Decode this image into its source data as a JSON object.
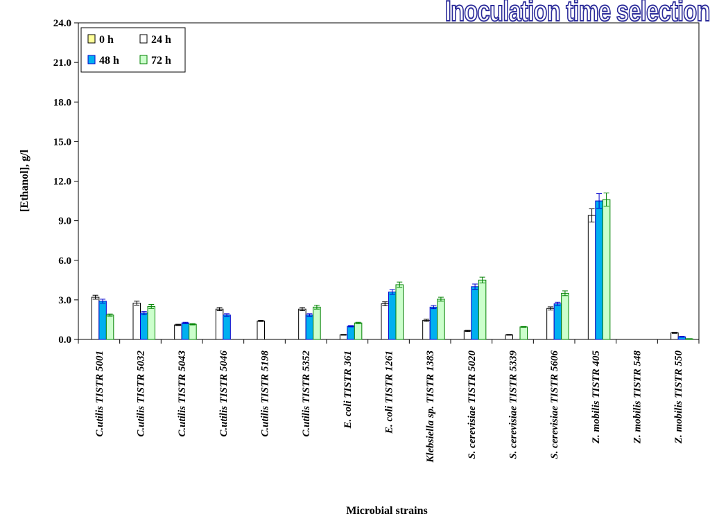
{
  "banner": "Inoculation time selection",
  "chart_data": {
    "type": "bar",
    "title": "",
    "xlabel": "Microbial strains",
    "ylabel": "[Ethanol], g/l",
    "ylim": [
      0,
      24
    ],
    "yticks": [
      "0.0",
      "3.0",
      "6.0",
      "9.0",
      "12.0",
      "15.0",
      "18.0",
      "21.0",
      "24.0"
    ],
    "grid": false,
    "legend_position": "top-left",
    "categories": [
      "C.utilis TISTR 5001",
      "C.utilis TISTR 5032",
      "C.utilis TISTR 5043",
      "C.utilis TISTR 5046",
      "C.utilis TISTR 5198",
      "C.utilis TISTR 5352",
      "E. coli TISTR 361",
      "E. coli TISTR 1261",
      "Klebsiella sp. TISTR 1383",
      "S. cerevisiae TISTR 5020",
      "S. cerevisiae TISTR 5339",
      "S. cerevisiae TISTR 5606",
      "Z. mobilis TISTR 405",
      "Z. mobilis TISTR 548",
      "Z. mobilis TISTR 550"
    ],
    "series": [
      {
        "name": "0 h",
        "color": "#ffff99",
        "stroke": "#000000",
        "values": [
          0,
          0,
          0,
          0,
          0,
          0,
          0,
          0,
          0,
          0,
          0,
          0,
          0,
          0,
          0
        ],
        "errors": [
          0,
          0,
          0,
          0,
          0,
          0,
          0,
          0,
          0,
          0,
          0,
          0,
          0,
          0,
          0
        ]
      },
      {
        "name": "24 h",
        "color": "#ffffff",
        "stroke": "#000000",
        "values": [
          3.2,
          2.75,
          1.1,
          2.3,
          1.4,
          2.3,
          0.35,
          2.7,
          1.45,
          0.65,
          0.35,
          2.35,
          9.4,
          0,
          0.5
        ],
        "errors": [
          0.15,
          0.15,
          0.05,
          0.12,
          0.04,
          0.12,
          0.03,
          0.15,
          0.08,
          0.05,
          0.03,
          0.12,
          0.5,
          0,
          0.04
        ]
      },
      {
        "name": "48 h",
        "color": "#00b0f0",
        "stroke": "#0000cc",
        "values": [
          2.9,
          2.0,
          1.25,
          1.85,
          0,
          1.85,
          1.0,
          3.6,
          2.45,
          4.0,
          0,
          2.7,
          10.5,
          0,
          0.2
        ],
        "errors": [
          0.15,
          0.12,
          0.05,
          0.1,
          0,
          0.1,
          0.05,
          0.18,
          0.12,
          0.2,
          0,
          0.12,
          0.55,
          0,
          0.03
        ]
      },
      {
        "name": "72 h",
        "color": "#ccffcc",
        "stroke": "#008000",
        "values": [
          1.85,
          2.5,
          1.15,
          0,
          0,
          2.45,
          1.25,
          4.15,
          3.05,
          4.5,
          0.95,
          3.5,
          10.6,
          0,
          0.05
        ],
        "errors": [
          0.08,
          0.15,
          0.05,
          0,
          0,
          0.15,
          0.05,
          0.2,
          0.15,
          0.22,
          0.03,
          0.18,
          0.5,
          0,
          0.01
        ]
      }
    ]
  }
}
